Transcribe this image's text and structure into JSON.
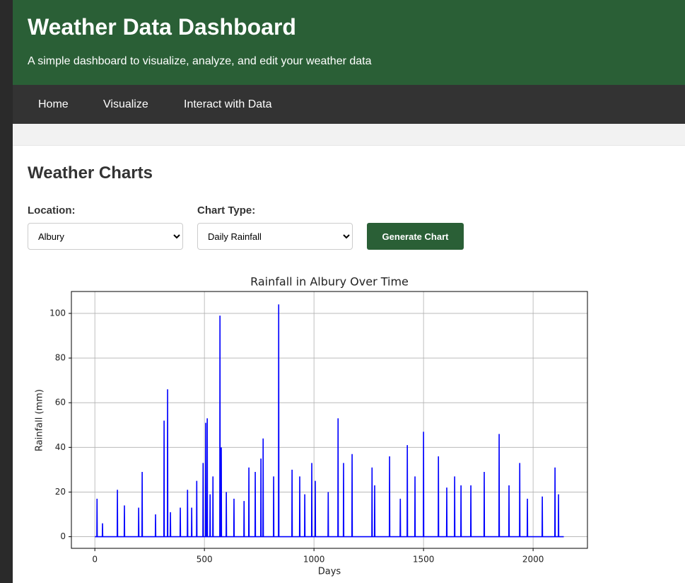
{
  "header": {
    "title": "Weather Data Dashboard",
    "subtitle": "A simple dashboard to visualize, analyze, and edit your weather data"
  },
  "nav": {
    "items": [
      "Home",
      "Visualize",
      "Interact with Data"
    ]
  },
  "section": {
    "title": "Weather Charts"
  },
  "form": {
    "location": {
      "label": "Location:",
      "value": "Albury"
    },
    "chart_type": {
      "label": "Chart Type:",
      "value": "Daily Rainfall"
    },
    "button": "Generate Chart"
  },
  "chart_data": {
    "type": "line",
    "title": "Rainfall in Albury Over Time",
    "xlabel": "Days",
    "ylabel": "Rainfall (mm)",
    "color": "#0000ff",
    "grid": true,
    "xlim": [
      -107,
      2248
    ],
    "ylim": [
      -5.2,
      109.8
    ],
    "xticks": [
      0,
      500,
      1000,
      1500,
      2000
    ],
    "yticks": [
      0,
      20,
      40,
      60,
      80,
      100
    ],
    "x": [
      0,
      9,
      10,
      11,
      34,
      35,
      36,
      102,
      103,
      104,
      134,
      135,
      136,
      199,
      200,
      201,
      215,
      216,
      217,
      276,
      277,
      278,
      315,
      316,
      317,
      331,
      332,
      333,
      344,
      345,
      346,
      389,
      390,
      391,
      422,
      423,
      424,
      441,
      442,
      443,
      464,
      465,
      466,
      493,
      494,
      495,
      505,
      506,
      507,
      512,
      513,
      514,
      525,
      526,
      527,
      538,
      539,
      540,
      570,
      571,
      572,
      576,
      577,
      578,
      599,
      600,
      601,
      634,
      635,
      636,
      680,
      681,
      682,
      702,
      703,
      704,
      731,
      732,
      733,
      757,
      758,
      759,
      767,
      768,
      769,
      815,
      816,
      817,
      838,
      839,
      840,
      899,
      900,
      901,
      934,
      935,
      936,
      957,
      958,
      959,
      989,
      990,
      991,
      1005,
      1006,
      1007,
      1064,
      1065,
      1066,
      1109,
      1110,
      1111,
      1134,
      1135,
      1136,
      1173,
      1174,
      1175,
      1264,
      1265,
      1266,
      1276,
      1277,
      1278,
      1344,
      1345,
      1346,
      1393,
      1394,
      1395,
      1425,
      1426,
      1427,
      1460,
      1461,
      1462,
      1499,
      1500,
      1501,
      1567,
      1568,
      1569,
      1605,
      1606,
      1607,
      1641,
      1642,
      1643,
      1670,
      1671,
      1672,
      1715,
      1716,
      1717,
      1776,
      1777,
      1778,
      1844,
      1845,
      1846,
      1889,
      1890,
      1891,
      1938,
      1939,
      1940,
      1973,
      1974,
      1975,
      2041,
      2042,
      2043,
      2099,
      2100,
      2101,
      2115,
      2116,
      2117,
      2140
    ],
    "values": [
      0,
      0,
      17,
      0,
      0,
      6,
      0,
      0,
      21,
      0,
      0,
      14,
      0,
      0,
      13,
      0,
      0,
      29,
      0,
      0,
      10,
      0,
      0,
      52,
      0,
      0,
      66,
      0,
      0,
      11,
      0,
      0,
      13,
      0,
      0,
      21,
      0,
      0,
      13,
      0,
      0,
      25,
      0,
      0,
      33,
      0,
      0,
      51,
      0,
      0,
      53,
      0,
      0,
      19,
      0,
      0,
      27,
      0,
      0,
      99,
      0,
      0,
      40,
      0,
      0,
      20,
      0,
      0,
      17,
      0,
      0,
      16,
      0,
      0,
      31,
      0,
      0,
      29,
      0,
      0,
      35,
      0,
      0,
      44,
      0,
      0,
      27,
      0,
      0,
      104,
      0,
      0,
      30,
      0,
      0,
      27,
      0,
      0,
      19,
      0,
      0,
      33,
      0,
      0,
      25,
      0,
      0,
      20,
      0,
      0,
      53,
      0,
      0,
      33,
      0,
      0,
      37,
      0,
      0,
      31,
      0,
      0,
      23,
      0,
      0,
      36,
      0,
      0,
      17,
      0,
      0,
      41,
      0,
      0,
      27,
      0,
      0,
      47,
      0,
      0,
      36,
      0,
      0,
      22,
      0,
      0,
      27,
      0,
      0,
      23,
      0,
      0,
      23,
      0,
      0,
      29,
      0,
      0,
      46,
      0,
      0,
      23,
      0,
      0,
      33,
      0,
      0,
      17,
      0,
      0,
      18,
      0,
      0,
      31,
      0,
      0,
      19,
      0,
      0
    ]
  }
}
